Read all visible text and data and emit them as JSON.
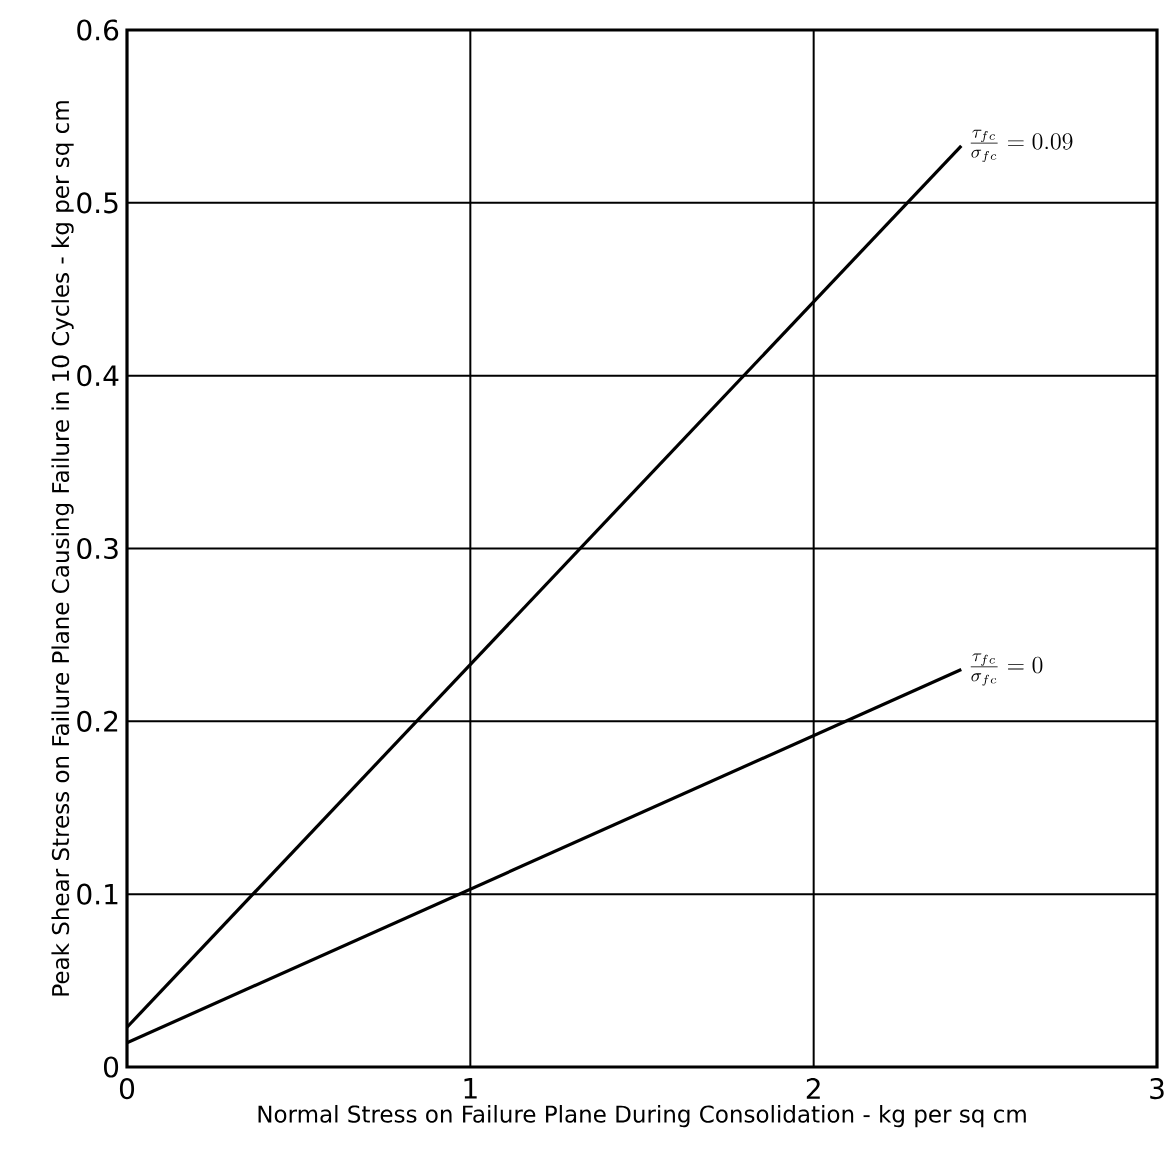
{
  "chart_data": {
    "type": "line",
    "xlabel": "Normal Stress on Failure Plane During Consolidation - kg per sq cm",
    "ylabel": "Peak Shear Stress on Failure Plane Causing Failure in 10 Cycles - kg per sq cm",
    "series": [
      {
        "name": "\\frac{\\tau_{fc}}{\\sigma_{fc}} = 0.09",
        "color": "#000000",
        "values": [
          0.023,
          0.533
        ]
      },
      {
        "name": "\\frac{\\tau_{fc}}{\\sigma_{fc}} = 0",
        "color": "#000000",
        "values": [
          0.014,
          0.23
        ]
      }
    ],
    "x": [
      0,
      2.43
    ],
    "xlim": [
      0,
      3
    ],
    "ylim": [
      0,
      0.6
    ],
    "xticks": [
      0,
      1,
      2,
      3
    ],
    "yticks": [
      0,
      0.1,
      0.2,
      0.3,
      0.4,
      0.5,
      0.6
    ],
    "grid": true,
    "marker": "none",
    "line_style": "solid"
  }
}
